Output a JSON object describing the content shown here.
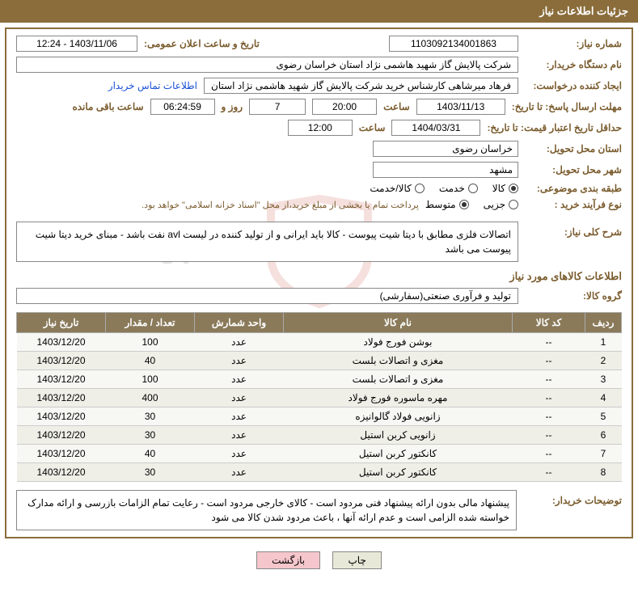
{
  "header": {
    "title": "جزئیات اطلاعات نیاز"
  },
  "fields": {
    "need_no_label": "شماره نیاز:",
    "need_no": "1103092134001863",
    "announce_label": "تاریخ و ساعت اعلان عمومی:",
    "announce": "1403/11/06 - 12:24",
    "buyer_org_label": "نام دستگاه خریدار:",
    "buyer_org": "شرکت پالایش گاز شهید هاشمی نژاد   استان خراسان رضوی",
    "requester_label": "ایجاد کننده درخواست:",
    "requester": "فرهاد میرشاهی کارشناس خرید شرکت پالایش گاز شهید هاشمی نژاد   استان",
    "contact_link": "اطلاعات تماس خریدار",
    "deadline_label": "مهلت ارسال پاسخ: تا تاریخ:",
    "deadline_date": "1403/11/13",
    "time_label": "ساعت",
    "deadline_time": "20:00",
    "days_remain": "7",
    "days_label": "روز و",
    "countdown": "06:24:59",
    "remaining_label": "ساعت باقی مانده",
    "validity_label": "حداقل تاریخ اعتبار قیمت: تا تاریخ:",
    "validity_date": "1404/03/31",
    "validity_time": "12:00",
    "province_label": "استان محل تحویل:",
    "province": "خراسان رضوی",
    "city_label": "شهر محل تحویل:",
    "city": "مشهد",
    "category_label": "طبقه بندی موضوعی:",
    "cat1": "کالا",
    "cat2": "خدمت",
    "cat3": "کالا/خدمت",
    "process_label": "نوع فرآیند خرید :",
    "proc1": "جزیی",
    "proc2": "متوسط",
    "process_note": "پرداخت تمام یا بخشی از مبلغ خرید،از محل \"اسناد خزانه اسلامی\" خواهد بود.",
    "desc_label": "شرح کلی نیاز:",
    "desc_text": "اتصالات فلزی مطابق با دیتا شیت پیوست - کالا باید ایرانی و از تولید کننده در لیست avl نفت باشد - مبنای خرید دیتا شیت پیوست می باشد",
    "items_title": "اطلاعات کالاهای مورد نیاز",
    "group_label": "گروه کالا:",
    "group_value": "تولید و فرآوری صنعتی(سفارشی)",
    "buyer_notes_label": "توضیحات خریدار:",
    "buyer_notes": "پیشنهاد مالی بدون ارائه پیشنهاد فنی مردود است - کالای خارجی مردود است - رعایت تمام الزامات بازرسی و ارائه مدارک خواسته شده الزامی است و عدم ارائه آنها ، باعث مردود شدن کالا می شود"
  },
  "table": {
    "headers": {
      "row": "ردیف",
      "code": "کد کالا",
      "name": "نام کالا",
      "unit": "واحد شمارش",
      "qty": "تعداد / مقدار",
      "date": "تاریخ نیاز"
    },
    "rows": [
      {
        "n": "1",
        "code": "--",
        "name": "بوشن فورج فولاد",
        "unit": "عدد",
        "qty": "100",
        "date": "1403/12/20"
      },
      {
        "n": "2",
        "code": "--",
        "name": "مغزی و اتصالات بلست",
        "unit": "عدد",
        "qty": "40",
        "date": "1403/12/20"
      },
      {
        "n": "3",
        "code": "--",
        "name": "مغزی و اتصالات بلست",
        "unit": "عدد",
        "qty": "100",
        "date": "1403/12/20"
      },
      {
        "n": "4",
        "code": "--",
        "name": "مهره ماسوره فورج فولاد",
        "unit": "عدد",
        "qty": "400",
        "date": "1403/12/20"
      },
      {
        "n": "5",
        "code": "--",
        "name": "زانویی فولاد گالوانیزه",
        "unit": "عدد",
        "qty": "30",
        "date": "1403/12/20"
      },
      {
        "n": "6",
        "code": "--",
        "name": "زانویی کربن استیل",
        "unit": "عدد",
        "qty": "30",
        "date": "1403/12/20"
      },
      {
        "n": "7",
        "code": "--",
        "name": "کانکتور کربن استیل",
        "unit": "عدد",
        "qty": "40",
        "date": "1403/12/20"
      },
      {
        "n": "8",
        "code": "--",
        "name": "کانکتور کربن استیل",
        "unit": "عدد",
        "qty": "30",
        "date": "1403/12/20"
      }
    ]
  },
  "buttons": {
    "print": "چاپ",
    "back": "بازگشت"
  }
}
